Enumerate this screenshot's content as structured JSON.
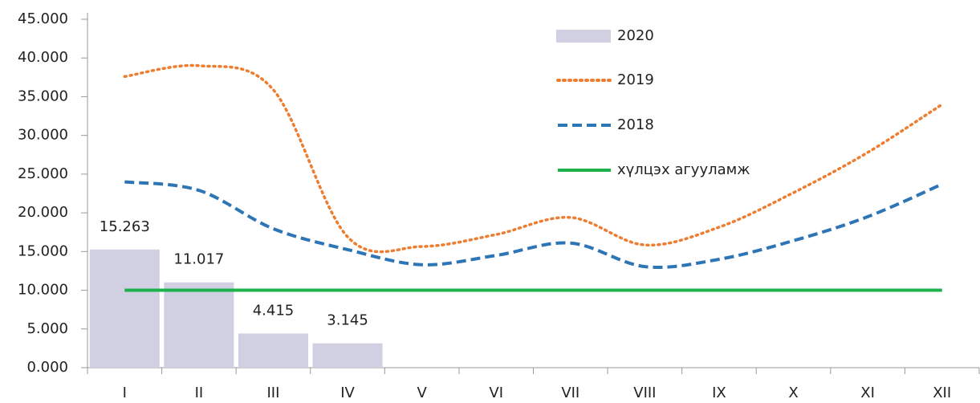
{
  "chart_data": {
    "type": "bar",
    "categories": [
      "I",
      "II",
      "III",
      "IV",
      "V",
      "VI",
      "VII",
      "VIII",
      "IX",
      "X",
      "XI",
      "XII"
    ],
    "series": [
      {
        "name": "2020",
        "type": "bar",
        "color": "#d0d0e2",
        "values": [
          15263,
          11017,
          4415,
          3145,
          null,
          null,
          null,
          null,
          null,
          null,
          null,
          null
        ],
        "value_labels": [
          "15.263",
          "11.017",
          "4.415",
          "3.145",
          null,
          null,
          null,
          null,
          null,
          null,
          null,
          null
        ]
      },
      {
        "name": "2019",
        "type": "line",
        "style": "dotted",
        "color": "#ed7d31",
        "values": [
          37600,
          39000,
          35900,
          16900,
          15650,
          17200,
          19400,
          15850,
          18150,
          22600,
          27800,
          34000
        ]
      },
      {
        "name": "2018",
        "type": "line",
        "style": "dashed",
        "color": "#2e75b6",
        "values": [
          24000,
          22900,
          17950,
          15250,
          13300,
          14500,
          16100,
          13050,
          14000,
          16400,
          19500,
          23700
        ]
      },
      {
        "name": "хүлцэх агууламж",
        "type": "line",
        "style": "solid",
        "color": "#1db14b",
        "values": [
          10000,
          10000,
          10000,
          10000,
          10000,
          10000,
          10000,
          10000,
          10000,
          10000,
          10000,
          10000
        ]
      }
    ],
    "ylim": [
      0,
      45000
    ],
    "yticks": [
      {
        "value": 0,
        "label": "0.000"
      },
      {
        "value": 5000,
        "label": "5.000"
      },
      {
        "value": 10000,
        "label": "10.000"
      },
      {
        "value": 15000,
        "label": "15.000"
      },
      {
        "value": 20000,
        "label": "20.000"
      },
      {
        "value": 25000,
        "label": "25.000"
      },
      {
        "value": 30000,
        "label": "30.000"
      },
      {
        "value": 35000,
        "label": "35.000"
      },
      {
        "value": 40000,
        "label": "40.000"
      },
      {
        "value": 45000,
        "label": "45.000"
      }
    ],
    "legend": "top-right"
  }
}
